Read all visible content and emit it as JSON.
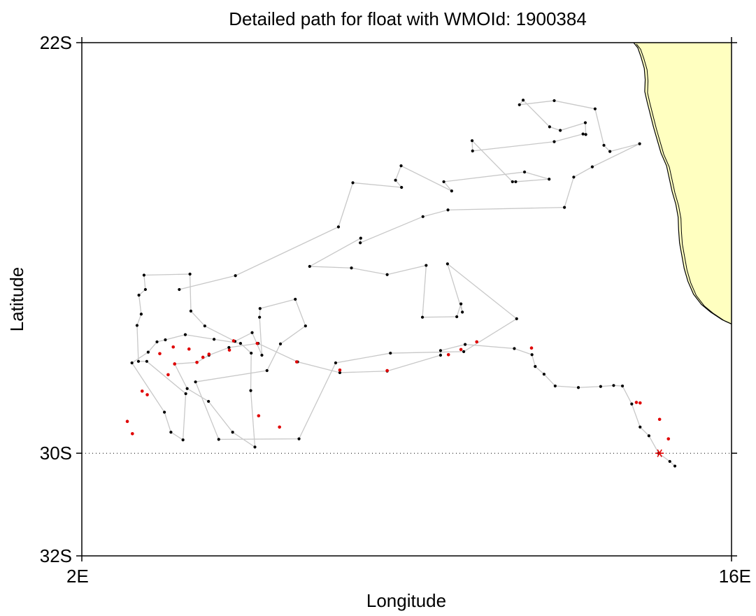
{
  "title": "Detailed path for float with WMOId: 1900384",
  "xlabel": "Longitude",
  "ylabel": "Latitude",
  "colors": {
    "land": "#ffffc0",
    "track": "#c8c8c8",
    "profile_black": "#000000",
    "profile_red": "#e00000",
    "marker": "#e00000"
  },
  "chart_data": {
    "type": "scatter",
    "xlim": [
      2,
      16
    ],
    "ylim": [
      -32,
      -22
    ],
    "x_ticks": [
      {
        "value": 2,
        "label": "2E"
      },
      {
        "value": 16,
        "label": "16E"
      }
    ],
    "y_ticks": [
      {
        "value": -22,
        "label": "22S"
      },
      {
        "value": -30,
        "label": "30S"
      },
      {
        "value": -32,
        "label": "32S"
      }
    ],
    "reference_line": {
      "lat": -30,
      "style": "dotted"
    },
    "track": [
      [
        14.78,
        -30.25
      ],
      [
        14.67,
        -30.16
      ],
      [
        14.43,
        -30.0
      ],
      [
        14.22,
        -29.66
      ],
      [
        14.03,
        -29.49
      ],
      [
        13.85,
        -29.04
      ],
      [
        13.65,
        -28.69
      ],
      [
        13.46,
        -28.68
      ],
      [
        13.18,
        -28.7
      ],
      [
        12.7,
        -28.72
      ],
      [
        12.2,
        -28.69
      ],
      [
        11.96,
        -28.46
      ],
      [
        11.77,
        -28.31
      ],
      [
        11.7,
        -28.08
      ],
      [
        11.32,
        -27.96
      ],
      [
        10.26,
        -27.88
      ],
      [
        9.73,
        -28.0
      ],
      [
        9.73,
        -28.09
      ],
      [
        8.58,
        -28.4
      ],
      [
        7.56,
        -28.43
      ],
      [
        6.65,
        -28.22
      ],
      [
        5.8,
        -27.86
      ],
      [
        5.17,
        -27.94
      ],
      [
        4.74,
        -28.09
      ],
      [
        4.48,
        -28.23
      ],
      [
        4.0,
        -28.26
      ],
      [
        4.27,
        -28.74
      ],
      [
        4.73,
        -28.99
      ],
      [
        5.25,
        -29.59
      ],
      [
        5.73,
        -29.88
      ],
      [
        5.64,
        -28.78
      ],
      [
        5.65,
        -28.05
      ],
      [
        5.42,
        -27.86
      ],
      [
        4.85,
        -27.78
      ],
      [
        4.23,
        -27.69
      ],
      [
        3.8,
        -27.79
      ],
      [
        3.62,
        -27.83
      ],
      [
        3.43,
        -28.03
      ],
      [
        3.08,
        -28.24
      ],
      [
        3.78,
        -29.2
      ],
      [
        3.92,
        -29.59
      ],
      [
        4.18,
        -29.74
      ],
      [
        4.24,
        -28.84
      ],
      [
        3.4,
        -28.21
      ],
      [
        3.22,
        -28.21
      ],
      [
        3.19,
        -27.51
      ],
      [
        3.28,
        -27.29
      ],
      [
        3.23,
        -26.92
      ],
      [
        3.37,
        -26.81
      ],
      [
        3.34,
        -26.53
      ],
      [
        4.33,
        -26.51
      ],
      [
        4.35,
        -27.23
      ],
      [
        4.65,
        -27.52
      ],
      [
        5.3,
        -27.82
      ],
      [
        5.67,
        -27.65
      ],
      [
        5.88,
        -28.09
      ],
      [
        5.83,
        -27.35
      ],
      [
        5.84,
        -27.18
      ],
      [
        6.6,
        -27.0
      ],
      [
        6.82,
        -27.52
      ],
      [
        6.28,
        -27.87
      ],
      [
        5.99,
        -28.39
      ],
      [
        4.45,
        -28.61
      ],
      [
        4.95,
        -29.73
      ],
      [
        6.68,
        -29.72
      ],
      [
        7.47,
        -28.24
      ],
      [
        8.65,
        -28.05
      ],
      [
        10.23,
        -28.02
      ],
      [
        11.37,
        -27.38
      ],
      [
        9.88,
        -26.31
      ],
      [
        10.2,
        -27.25
      ],
      [
        10.17,
        -27.09
      ],
      [
        10.08,
        -27.34
      ],
      [
        9.34,
        -27.35
      ],
      [
        9.42,
        -26.34
      ],
      [
        8.58,
        -26.52
      ],
      [
        7.81,
        -26.39
      ],
      [
        6.91,
        -26.36
      ],
      [
        8.01,
        -25.81
      ],
      [
        8.0,
        -25.9
      ],
      [
        9.35,
        -25.39
      ],
      [
        9.89,
        -25.26
      ],
      [
        12.4,
        -25.21
      ],
      [
        12.6,
        -24.62
      ],
      [
        13.0,
        -24.42
      ],
      [
        14.02,
        -23.97
      ],
      [
        13.38,
        -24.12
      ],
      [
        13.25,
        -24.0
      ],
      [
        13.06,
        -23.29
      ],
      [
        12.18,
        -23.13
      ],
      [
        11.43,
        -23.21
      ],
      [
        11.51,
        -23.12
      ],
      [
        12.08,
        -23.64
      ],
      [
        12.31,
        -23.71
      ],
      [
        12.85,
        -23.56
      ],
      [
        12.86,
        -23.79
      ],
      [
        12.8,
        -23.78
      ],
      [
        12.18,
        -23.93
      ],
      [
        10.42,
        -24.11
      ],
      [
        10.41,
        -23.91
      ],
      [
        11.28,
        -24.71
      ],
      [
        11.35,
        -24.71
      ],
      [
        12.07,
        -24.66
      ],
      [
        11.54,
        -24.52
      ],
      [
        9.8,
        -24.71
      ],
      [
        9.97,
        -24.89
      ],
      [
        8.88,
        -24.4
      ],
      [
        8.76,
        -24.68
      ],
      [
        8.89,
        -24.82
      ],
      [
        7.84,
        -24.73
      ],
      [
        7.53,
        -25.59
      ],
      [
        5.31,
        -26.54
      ],
      [
        4.1,
        -26.81
      ]
    ],
    "red_points": [
      [
        14.64,
        -29.72
      ],
      [
        14.45,
        -29.34
      ],
      [
        14.03,
        -29.02
      ],
      [
        13.95,
        -29.01
      ],
      [
        11.69,
        -27.95
      ],
      [
        10.51,
        -27.83
      ],
      [
        10.17,
        -27.98
      ],
      [
        9.9,
        -28.08
      ],
      [
        8.58,
        -28.39
      ],
      [
        7.56,
        -28.38
      ],
      [
        6.63,
        -28.22
      ],
      [
        5.78,
        -27.86
      ],
      [
        5.18,
        -27.99
      ],
      [
        4.74,
        -28.07
      ],
      [
        4.48,
        -28.23
      ],
      [
        4.0,
        -28.26
      ],
      [
        3.86,
        -28.47
      ],
      [
        3.3,
        -28.79
      ],
      [
        2.98,
        -29.38
      ],
      [
        3.09,
        -29.62
      ],
      [
        3.41,
        -28.86
      ],
      [
        3.68,
        -28.06
      ],
      [
        3.97,
        -27.93
      ],
      [
        4.31,
        -27.97
      ],
      [
        4.61,
        -28.13
      ],
      [
        5.27,
        -27.81
      ],
      [
        6.26,
        -29.49
      ],
      [
        5.81,
        -29.27
      ]
    ],
    "current_position": [
      14.45,
      -30.0
    ],
    "coastline": [
      [
        13.89,
        -22.0
      ],
      [
        13.98,
        -22.1
      ],
      [
        14.05,
        -22.28
      ],
      [
        14.12,
        -22.5
      ],
      [
        14.14,
        -22.72
      ],
      [
        14.13,
        -22.95
      ],
      [
        14.18,
        -23.15
      ],
      [
        14.25,
        -23.4
      ],
      [
        14.32,
        -23.65
      ],
      [
        14.4,
        -23.9
      ],
      [
        14.48,
        -24.15
      ],
      [
        14.6,
        -24.4
      ],
      [
        14.66,
        -24.65
      ],
      [
        14.72,
        -24.9
      ],
      [
        14.8,
        -25.15
      ],
      [
        14.85,
        -25.4
      ],
      [
        14.86,
        -25.65
      ],
      [
        14.88,
        -25.9
      ],
      [
        14.93,
        -26.15
      ],
      [
        14.98,
        -26.4
      ],
      [
        15.06,
        -26.65
      ],
      [
        15.18,
        -26.9
      ],
      [
        15.35,
        -27.1
      ],
      [
        15.55,
        -27.25
      ],
      [
        15.8,
        -27.4
      ],
      [
        16.0,
        -27.48
      ]
    ]
  }
}
